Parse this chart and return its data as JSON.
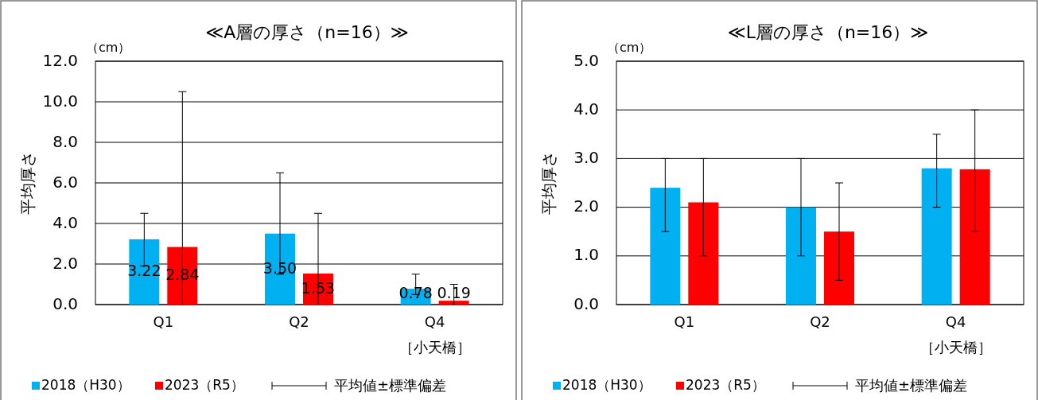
{
  "chart_data": [
    {
      "type": "bar",
      "title": "≪A層の厚さ（n=16）≫",
      "ylabel": "平均厚さ",
      "annotations": [
        "（cm）",
        "平均値±標準偏差"
      ],
      "categories": [
        "Q1",
        "Q2",
        "Q4\n［小天橋］"
      ],
      "ylim": [
        0,
        12
      ],
      "yticks": [
        {
          "value": 0,
          "label": "0.0"
        },
        {
          "value": 2,
          "label": "2.0"
        },
        {
          "value": 4,
          "label": "4.0"
        },
        {
          "value": 6,
          "label": "6.0"
        },
        {
          "value": 8,
          "label": "8.0"
        },
        {
          "value": 10,
          "label": "10.0"
        },
        {
          "value": 12,
          "label": "12.0"
        }
      ],
      "grid": "y",
      "legend": "bottom",
      "series": [
        {
          "name": "2018（H30）",
          "color": "#00b0f0",
          "values": [
            3.22,
            3.5,
            0.78
          ],
          "errors": [
            [
              1.9,
              4.5
            ],
            [
              1.5,
              6.5
            ],
            [
              0.5,
              1.5
            ]
          ],
          "value_labels": [
            "3.22",
            "3.50",
            "0.78"
          ]
        },
        {
          "name": "2023（R5）",
          "color": "#ff0000",
          "values": [
            2.84,
            1.53,
            0.19
          ],
          "errors": [
            [
              0,
              10.5
            ],
            [
              0,
              4.5
            ],
            [
              0,
              1.0
            ]
          ],
          "value_labels": [
            "2.84",
            "1.53",
            "0.19"
          ]
        }
      ]
    },
    {
      "type": "bar",
      "title": "≪L層の厚さ（n=16）≫",
      "ylabel": "平均厚さ",
      "annotations": [
        "（cm）",
        "平均値±標準偏差"
      ],
      "categories": [
        "Q1",
        "Q2",
        "Q4\n［小天橋］"
      ],
      "ylim": [
        0,
        5
      ],
      "yticks": [
        {
          "value": 0,
          "label": "0.0"
        },
        {
          "value": 1,
          "label": "1.0"
        },
        {
          "value": 2,
          "label": "2.0"
        },
        {
          "value": 3,
          "label": "3.0"
        },
        {
          "value": 4,
          "label": "4.0"
        },
        {
          "value": 5,
          "label": "5.0"
        }
      ],
      "grid": "y",
      "legend": "bottom",
      "series": [
        {
          "name": "2018（H30）",
          "color": "#00b0f0",
          "values": [
            2.4,
            2.0,
            2.8
          ],
          "errors": [
            [
              1.5,
              3.0
            ],
            [
              1.0,
              3.0
            ],
            [
              2.0,
              3.5
            ]
          ]
        },
        {
          "name": "2023（R5）",
          "color": "#ff0000",
          "values": [
            2.1,
            1.5,
            2.78
          ],
          "errors": [
            [
              1.0,
              3.0
            ],
            [
              0.5,
              2.5
            ],
            [
              1.5,
              4.0
            ]
          ]
        }
      ]
    }
  ]
}
